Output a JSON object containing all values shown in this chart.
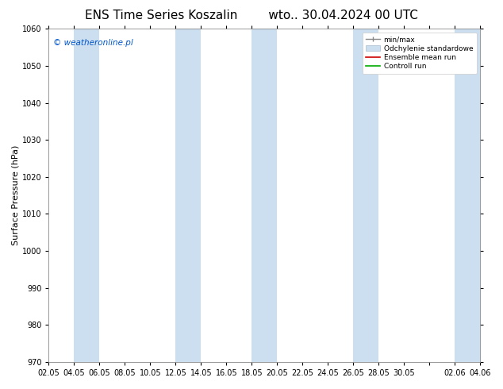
{
  "title_left": "ENS Time Series Koszalin",
  "title_right": "wto.. 30.04.2024 00 UTC",
  "ylabel": "Surface Pressure (hPa)",
  "ylim": [
    970,
    1060
  ],
  "yticks": [
    970,
    980,
    990,
    1000,
    1010,
    1020,
    1030,
    1040,
    1050,
    1060
  ],
  "x_labels": [
    "02.05",
    "04.05",
    "06.05",
    "08.05",
    "10.05",
    "12.05",
    "14.05",
    "16.05",
    "18.05",
    "20.05",
    "22.05",
    "24.05",
    "26.05",
    "28.05",
    "30.05",
    "",
    "02.06",
    "04.06"
  ],
  "x_positions": [
    0,
    2,
    4,
    6,
    8,
    10,
    12,
    14,
    16,
    18,
    20,
    22,
    24,
    26,
    28,
    30,
    32,
    34
  ],
  "band_color": "#ccdff0",
  "plot_bg": "#ffffff",
  "legend_labels": [
    "min/max",
    "Odchylenie standardowe",
    "Ensemble mean run",
    "Controll run"
  ],
  "watermark": "© weatheronline.pl",
  "watermark_color": "#0055cc",
  "title_fontsize": 11,
  "axis_fontsize": 8,
  "tick_fontsize": 7
}
